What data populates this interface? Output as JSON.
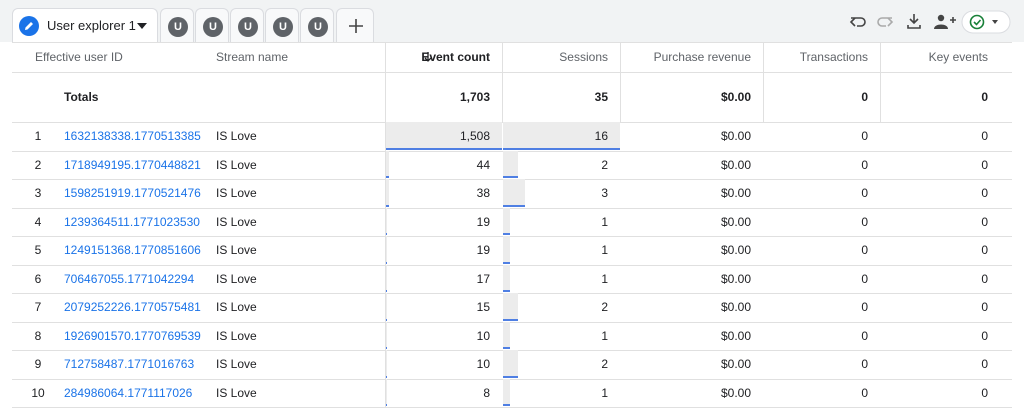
{
  "tabs": {
    "active": "User explorer 1",
    "others": [
      "U",
      "U",
      "U",
      "U",
      "U"
    ]
  },
  "table": {
    "columns": [
      "Effective user ID",
      "Stream name",
      "Event count",
      "Sessions",
      "Purchase revenue",
      "Transactions",
      "Key events"
    ],
    "totals": {
      "label": "Totals",
      "values": [
        "1,703",
        "35",
        "$0.00",
        "0",
        "0"
      ]
    },
    "rows": [
      [
        "1",
        "1632138338.1770513385",
        "IS Love",
        "1,508",
        "16",
        "$0.00",
        "0",
        "0"
      ],
      [
        "2",
        "1718949195.1770448821",
        "IS Love",
        "44",
        "2",
        "$0.00",
        "0",
        "0"
      ],
      [
        "3",
        "1598251919.1770521476",
        "IS Love",
        "38",
        "3",
        "$0.00",
        "0",
        "0"
      ],
      [
        "4",
        "1239364511.1771023530",
        "IS Love",
        "19",
        "1",
        "$0.00",
        "0",
        "0"
      ],
      [
        "5",
        "1249151368.1770851606",
        "IS Love",
        "19",
        "1",
        "$0.00",
        "0",
        "0"
      ],
      [
        "6",
        "706467055.1771042294",
        "IS Love",
        "17",
        "1",
        "$0.00",
        "0",
        "0"
      ],
      [
        "7",
        "2079252226.1770575481",
        "IS Love",
        "15",
        "2",
        "$0.00",
        "0",
        "0"
      ],
      [
        "8",
        "1926901570.1770769539",
        "IS Love",
        "10",
        "1",
        "$0.00",
        "0",
        "0"
      ],
      [
        "9",
        "712758487.1771016763",
        "IS Love",
        "10",
        "2",
        "$0.00",
        "0",
        "0"
      ],
      [
        "10",
        "284986064.1771117026",
        "IS Love",
        "8",
        "1",
        "$0.00",
        "0",
        "0"
      ]
    ]
  }
}
